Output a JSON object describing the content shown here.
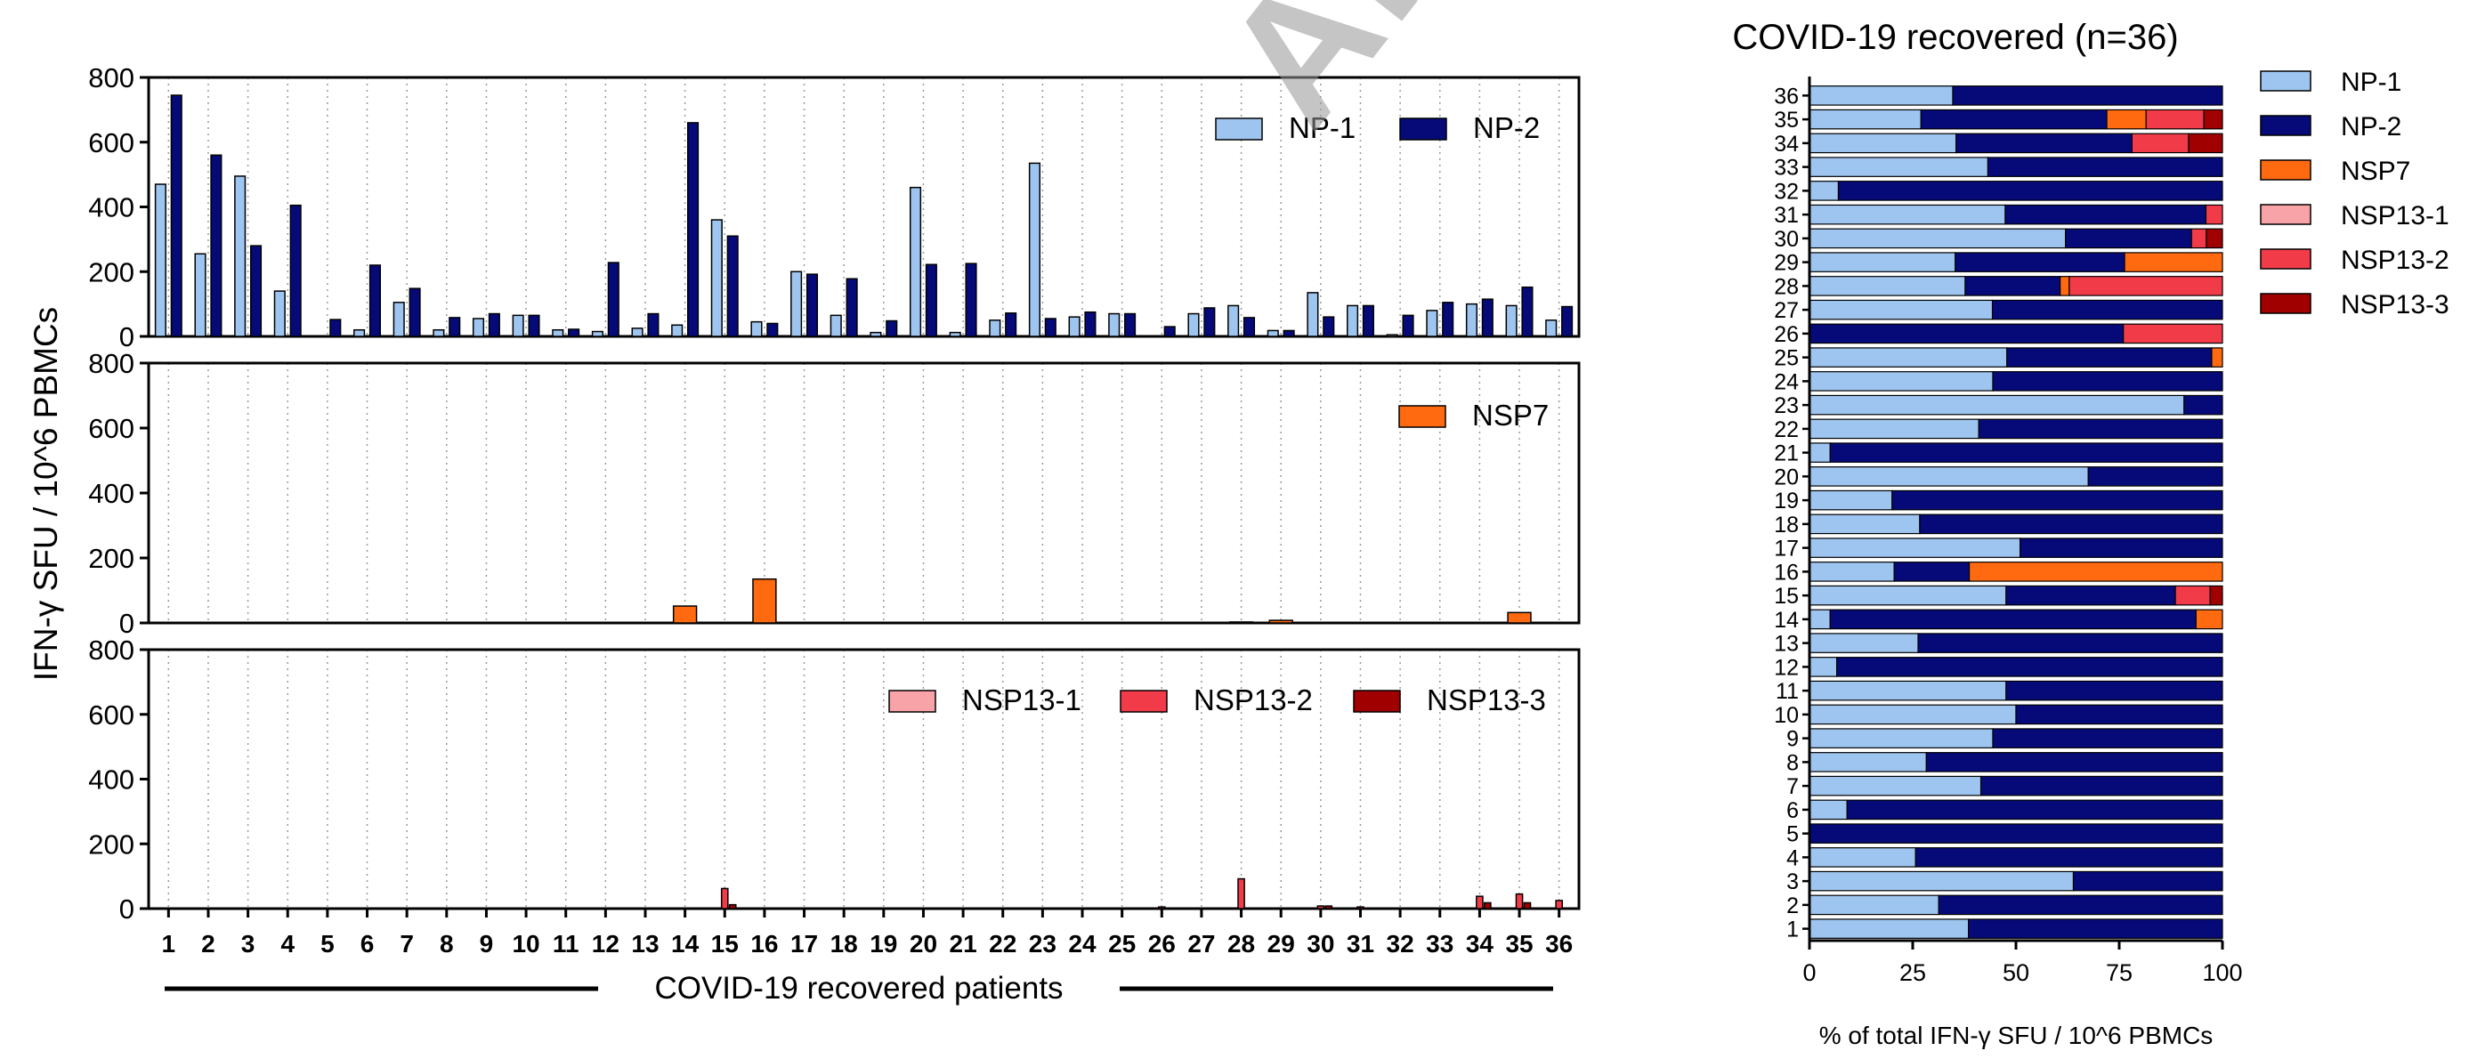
{
  "watermark": "ARTICLE PREVIEW",
  "colors": {
    "NP-1": "#9ec5f0",
    "NP-2": "#050a78",
    "NSP7": "#ff6a10",
    "NSP13-1": "#f8a3a8",
    "NSP13-2": "#f23b48",
    "NSP13-3": "#a00000"
  },
  "chart_data": [
    {
      "type": "bar",
      "panel": "top",
      "ylabel": "IFN-γ SFU / 10^6 PBMCs",
      "ylim": [
        0,
        800
      ],
      "yticks": [
        0,
        200,
        400,
        600,
        800
      ],
      "categories": [
        "1",
        "2",
        "3",
        "4",
        "5",
        "6",
        "7",
        "8",
        "9",
        "10",
        "11",
        "12",
        "13",
        "14",
        "15",
        "16",
        "17",
        "18",
        "19",
        "20",
        "21",
        "22",
        "23",
        "24",
        "25",
        "26",
        "27",
        "28",
        "29",
        "30",
        "31",
        "32",
        "33",
        "34",
        "35",
        "36"
      ],
      "legend_placement": "top-right",
      "series": [
        {
          "name": "NP-1",
          "values": [
            470,
            255,
            495,
            140,
            0,
            20,
            105,
            20,
            55,
            65,
            20,
            15,
            25,
            35,
            360,
            45,
            200,
            65,
            12,
            460,
            12,
            50,
            535,
            60,
            70,
            0,
            70,
            95,
            18,
            135,
            95,
            5,
            80,
            100,
            95,
            50
          ]
        },
        {
          "name": "NP-2",
          "values": [
            745,
            560,
            280,
            405,
            52,
            220,
            148,
            58,
            70,
            65,
            22,
            228,
            70,
            660,
            310,
            40,
            192,
            178,
            48,
            222,
            225,
            72,
            55,
            75,
            70,
            30,
            88,
            58,
            18,
            60,
            95,
            65,
            105,
            115,
            152,
            92
          ]
        }
      ]
    },
    {
      "type": "bar",
      "panel": "middle",
      "ylim": [
        0,
        800
      ],
      "yticks": [
        0,
        200,
        400,
        600,
        800
      ],
      "categories": [
        "1",
        "2",
        "3",
        "4",
        "5",
        "6",
        "7",
        "8",
        "9",
        "10",
        "11",
        "12",
        "13",
        "14",
        "15",
        "16",
        "17",
        "18",
        "19",
        "20",
        "21",
        "22",
        "23",
        "24",
        "25",
        "26",
        "27",
        "28",
        "29",
        "30",
        "31",
        "32",
        "33",
        "34",
        "35",
        "36"
      ],
      "legend_placement": "top-right",
      "series": [
        {
          "name": "NSP7",
          "values": [
            0,
            0,
            0,
            0,
            0,
            0,
            0,
            0,
            0,
            0,
            0,
            0,
            0,
            52,
            0,
            135,
            0,
            0,
            0,
            0,
            0,
            0,
            0,
            0,
            0,
            0,
            0,
            3,
            8,
            0,
            0,
            0,
            0,
            0,
            32,
            0
          ]
        }
      ]
    },
    {
      "type": "bar",
      "panel": "bottom",
      "xlabel": "COVID-19 recovered patients",
      "ylim": [
        0,
        800
      ],
      "yticks": [
        0,
        200,
        400,
        600,
        800
      ],
      "categories": [
        "1",
        "2",
        "3",
        "4",
        "5",
        "6",
        "7",
        "8",
        "9",
        "10",
        "11",
        "12",
        "13",
        "14",
        "15",
        "16",
        "17",
        "18",
        "19",
        "20",
        "21",
        "22",
        "23",
        "24",
        "25",
        "26",
        "27",
        "28",
        "29",
        "30",
        "31",
        "32",
        "33",
        "34",
        "35",
        "36"
      ],
      "legend_placement": "top-right",
      "series": [
        {
          "name": "NSP13-1",
          "values": [
            0,
            0,
            0,
            0,
            0,
            0,
            0,
            0,
            0,
            0,
            0,
            0,
            0,
            0,
            0,
            0,
            0,
            0,
            0,
            0,
            0,
            0,
            0,
            0,
            0,
            0,
            0,
            0,
            0,
            0,
            0,
            0,
            0,
            0,
            0,
            0
          ]
        },
        {
          "name": "NSP13-2",
          "values": [
            0,
            0,
            0,
            0,
            0,
            0,
            0,
            0,
            0,
            0,
            0,
            0,
            0,
            0,
            62,
            0,
            0,
            0,
            0,
            0,
            0,
            0,
            0,
            0,
            0,
            5,
            0,
            92,
            0,
            8,
            5,
            0,
            0,
            38,
            45,
            25
          ]
        },
        {
          "name": "NSP13-3",
          "values": [
            0,
            0,
            0,
            0,
            0,
            0,
            0,
            0,
            0,
            0,
            0,
            0,
            0,
            0,
            12,
            0,
            0,
            0,
            0,
            0,
            0,
            0,
            0,
            0,
            0,
            0,
            0,
            0,
            0,
            8,
            0,
            0,
            0,
            18,
            18,
            0
          ]
        }
      ]
    },
    {
      "type": "bar",
      "orientation": "horizontal-stacked",
      "title": "COVID-19 recovered (n=36)",
      "xlabel": "% of total IFN-γ SFU / 10^6 PBMCs",
      "xlim": [
        0,
        100
      ],
      "xticks": [
        0,
        25,
        50,
        75,
        100
      ],
      "categories": [
        "1",
        "2",
        "3",
        "4",
        "5",
        "6",
        "7",
        "8",
        "9",
        "10",
        "11",
        "12",
        "13",
        "14",
        "15",
        "16",
        "17",
        "18",
        "19",
        "20",
        "21",
        "22",
        "23",
        "24",
        "25",
        "26",
        "27",
        "28",
        "29",
        "30",
        "31",
        "32",
        "33",
        "34",
        "35",
        "36"
      ],
      "legend_placement": "right",
      "series": [
        {
          "name": "NP-1",
          "values": [
            38.5,
            31.3,
            63.9,
            25.7,
            0,
            9.1,
            41.5,
            28.3,
            44.4,
            50,
            47.6,
            6.6,
            26.3,
            5,
            47.6,
            20.5,
            51,
            26.7,
            20,
            67.5,
            5,
            41,
            90.7,
            44.4,
            47.8,
            0,
            44.3,
            37.7,
            35.3,
            62,
            47.4,
            7,
            43.2,
            35.5,
            27,
            34.7
          ]
        },
        {
          "name": "NP-2",
          "values": [
            61.5,
            68.7,
            36.1,
            74.3,
            100,
            90.9,
            58.5,
            71.7,
            55.6,
            50,
            52.4,
            93.4,
            73.7,
            88.6,
            41,
            18.2,
            49,
            73.3,
            80,
            32.5,
            95,
            59,
            9.3,
            55.6,
            49.6,
            76,
            55.7,
            23,
            41,
            30.5,
            48.6,
            93,
            56.8,
            42.6,
            45,
            65.3
          ]
        },
        {
          "name": "NSP7",
          "values": [
            0,
            0,
            0,
            0,
            0,
            0,
            0,
            0,
            0,
            0,
            0,
            0,
            0,
            6.4,
            0,
            61.3,
            0,
            0,
            0,
            0,
            0,
            0,
            0,
            0,
            2.6,
            0,
            0,
            2.2,
            23.7,
            0,
            0,
            0,
            0,
            0,
            9.5,
            0
          ]
        },
        {
          "name": "NSP13-1",
          "values": [
            0,
            0,
            0,
            0,
            0,
            0,
            0,
            0,
            0,
            0,
            0,
            0,
            0,
            0,
            0,
            0,
            0,
            0,
            0,
            0,
            0,
            0,
            0,
            0,
            0,
            0,
            0,
            0,
            0,
            0,
            0,
            0,
            0,
            0,
            0,
            0
          ]
        },
        {
          "name": "NSP13-2",
          "values": [
            0,
            0,
            0,
            0,
            0,
            0,
            0,
            0,
            0,
            0,
            0,
            0,
            0,
            0,
            8.4,
            0,
            0,
            0,
            0,
            0,
            0,
            0,
            0,
            0,
            0,
            24,
            0,
            37.1,
            0,
            3.6,
            4,
            0,
            0,
            13.7,
            14,
            0
          ]
        },
        {
          "name": "NSP13-3",
          "values": [
            0,
            0,
            0,
            0,
            0,
            0,
            0,
            0,
            0,
            0,
            0,
            0,
            0,
            0,
            3,
            0,
            0,
            0,
            0,
            0,
            0,
            0,
            0,
            0,
            0,
            0,
            0,
            0,
            0,
            3.9,
            0,
            0,
            0,
            8.2,
            4.5,
            0
          ]
        }
      ]
    }
  ]
}
